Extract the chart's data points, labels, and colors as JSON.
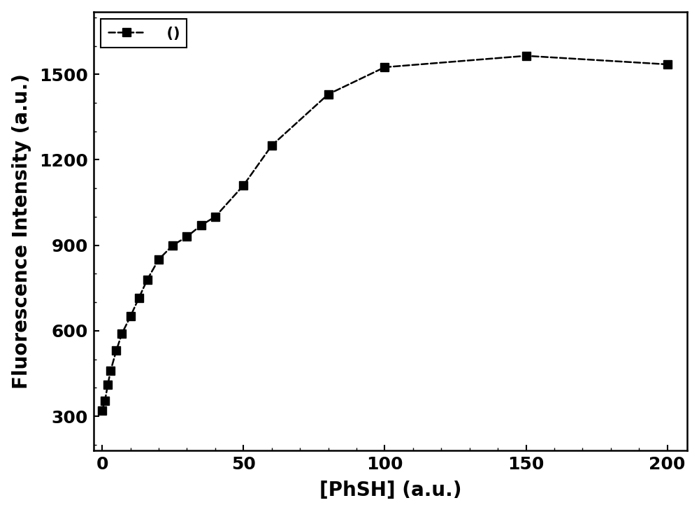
{
  "x_data": [
    0,
    1,
    2,
    3,
    5,
    7,
    10,
    13,
    16,
    20,
    25,
    30,
    35,
    40,
    50,
    60,
    80,
    100,
    150,
    200
  ],
  "y_data": [
    320,
    355,
    410,
    460,
    530,
    590,
    650,
    715,
    780,
    850,
    900,
    930,
    970,
    1000,
    1110,
    1250,
    1430,
    1525,
    1565,
    1535
  ],
  "xlabel": "[PhSH] (a.u.)",
  "ylabel": "Fluorescence Intensity (a.u.)",
  "legend_label": "  ()",
  "xlim": [
    -3,
    207
  ],
  "ylim": [
    180,
    1720
  ],
  "xticks": [
    0,
    50,
    100,
    150,
    200
  ],
  "yticks": [
    300,
    600,
    900,
    1200,
    1500
  ],
  "color": "#000000",
  "marker": "s",
  "markersize": 8,
  "linewidth": 1.8,
  "linestyle": "--",
  "label_fontsize": 20,
  "tick_fontsize": 18
}
